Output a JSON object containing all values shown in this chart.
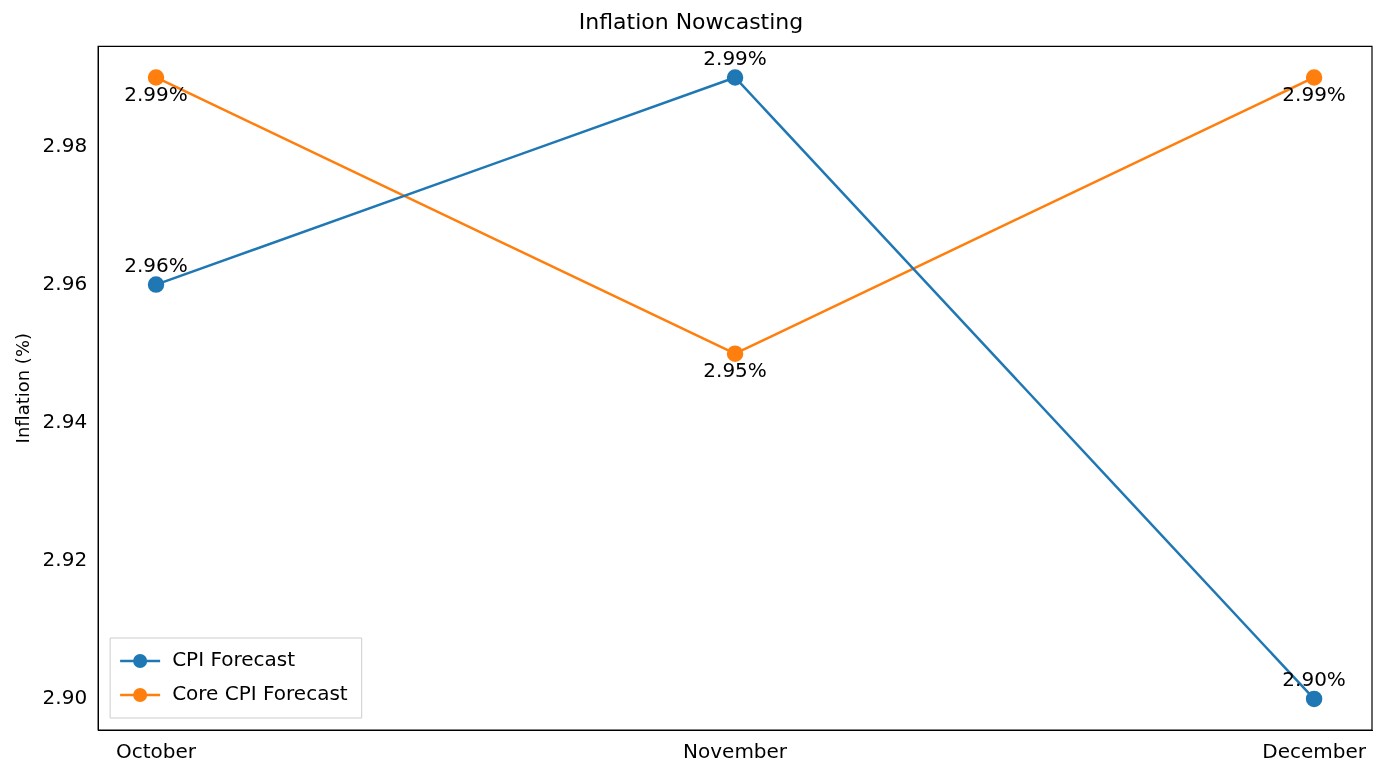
{
  "chart_data": {
    "type": "line",
    "title": "Inflation Nowcasting",
    "ylabel": "Inflation (%)",
    "categories": [
      "October",
      "November",
      "December"
    ],
    "series": [
      {
        "name": "CPI Forecast",
        "color": "#1f77b4",
        "values": [
          2.96,
          2.99,
          2.9
        ],
        "value_labels": [
          "2.96%",
          "2.99%",
          "2.90%"
        ]
      },
      {
        "name": "Core CPI Forecast",
        "color": "#ff7f0e",
        "values": [
          2.99,
          2.95,
          2.99
        ],
        "value_labels": [
          "2.99%",
          "2.95%",
          "2.99%"
        ]
      }
    ],
    "ylim": [
      2.8955,
      2.9945
    ],
    "yticks": [
      {
        "value": 2.9,
        "label": "2.90"
      },
      {
        "value": 2.92,
        "label": "2.92"
      },
      {
        "value": 2.94,
        "label": "2.94"
      },
      {
        "value": 2.96,
        "label": "2.96"
      },
      {
        "value": 2.98,
        "label": "2.98"
      }
    ],
    "grid": false,
    "legend": "bottom left",
    "marker": "circle",
    "line_style": "solid"
  }
}
